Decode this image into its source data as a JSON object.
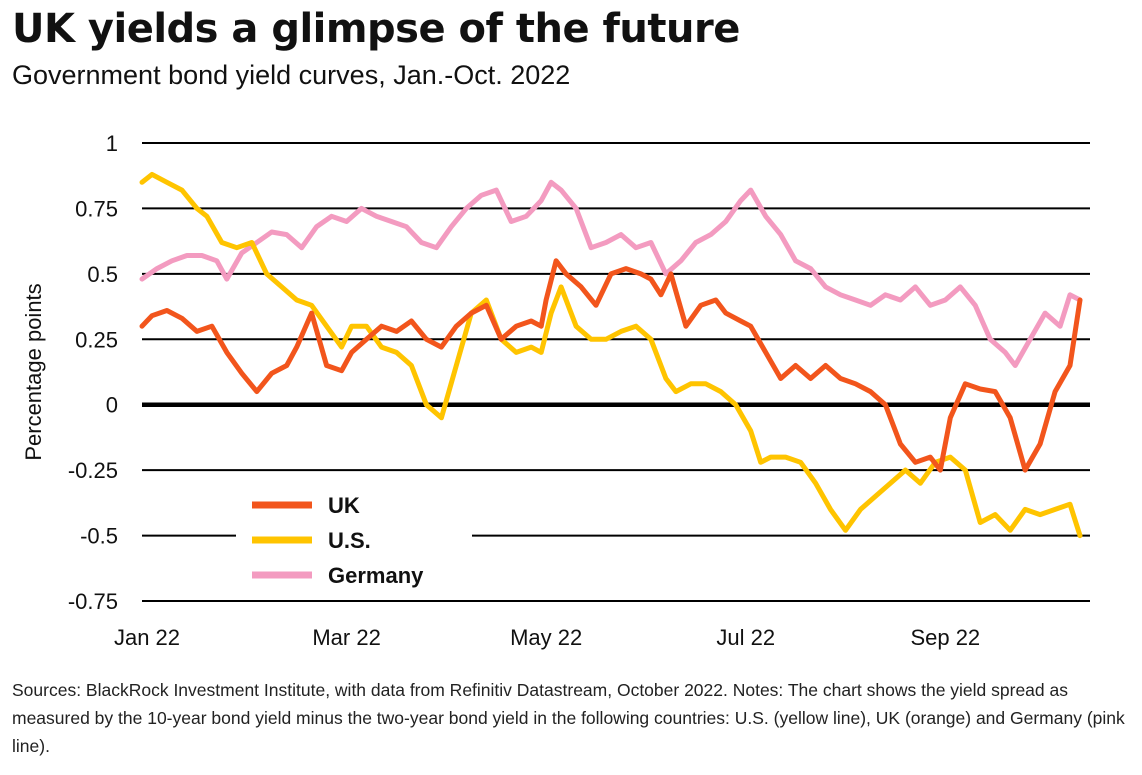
{
  "title": "UK yields a glimpse of the future",
  "subtitle": "Government bond yield curves, Jan.-Oct. 2022",
  "notes": "Sources: BlackRock Investment Institute, with data from Refinitiv Datastream, October 2022. Notes: The chart shows the yield spread as measured by the 10-year bond yield minus the two-year bond yield in the following countries: U.S. (yellow line), UK (orange) and Germany (pink line).",
  "colors": {
    "UK": "#f2551c",
    "U.S.": "#ffc400",
    "Germany": "#f39bc0",
    "gridline": "#000000"
  },
  "chart_data": {
    "type": "line",
    "title": "UK yields a glimpse of the future",
    "subtitle": "Government bond yield curves, Jan.-Oct. 2022",
    "xlabel": "",
    "ylabel": "Percentage points",
    "ylim": [
      -0.75,
      1
    ],
    "yticks": [
      1,
      0.75,
      0.5,
      0.25,
      0,
      -0.25,
      -0.5,
      -0.75
    ],
    "ytick_labels": [
      "1",
      "0.75",
      "0.5",
      "0.25",
      "0",
      "-0.25",
      "-0.5",
      "-0.75"
    ],
    "xlim": [
      0,
      9.5
    ],
    "xticks": [
      0,
      2,
      4,
      6,
      8
    ],
    "xtick_labels": [
      "Jan 22",
      "Mar 22",
      "May 22",
      "Jul 22",
      "Sep 22"
    ],
    "legend": "bottom-left",
    "grid": true,
    "series": [
      {
        "name": "UK",
        "x": [
          0,
          0.1,
          0.25,
          0.4,
          0.55,
          0.7,
          0.85,
          1.0,
          1.15,
          1.3,
          1.45,
          1.55,
          1.7,
          1.85,
          2.0,
          2.1,
          2.25,
          2.4,
          2.55,
          2.7,
          2.85,
          3.0,
          3.15,
          3.3,
          3.45,
          3.6,
          3.75,
          3.9,
          4.0,
          4.05,
          4.15,
          4.25,
          4.4,
          4.55,
          4.7,
          4.85,
          5.0,
          5.1,
          5.2,
          5.3,
          5.45,
          5.6,
          5.75,
          5.85,
          6.0,
          6.1,
          6.25,
          6.4,
          6.55,
          6.7,
          6.85,
          7.0,
          7.15,
          7.3,
          7.45,
          7.6,
          7.75,
          7.9,
          8.0,
          8.1,
          8.25,
          8.4,
          8.55,
          8.7,
          8.85,
          9.0,
          9.15,
          9.3,
          9.4
        ],
        "values": [
          0.3,
          0.34,
          0.36,
          0.33,
          0.28,
          0.3,
          0.2,
          0.12,
          0.05,
          0.12,
          0.15,
          0.22,
          0.35,
          0.15,
          0.13,
          0.2,
          0.25,
          0.3,
          0.28,
          0.32,
          0.25,
          0.22,
          0.3,
          0.35,
          0.38,
          0.25,
          0.3,
          0.32,
          0.3,
          0.4,
          0.55,
          0.5,
          0.45,
          0.38,
          0.5,
          0.52,
          0.5,
          0.48,
          0.42,
          0.5,
          0.3,
          0.38,
          0.4,
          0.35,
          0.32,
          0.3,
          0.2,
          0.1,
          0.15,
          0.1,
          0.15,
          0.1,
          0.08,
          0.05,
          0.0,
          -0.15,
          -0.22,
          -0.2,
          -0.25,
          -0.05,
          0.08,
          0.06,
          0.05,
          -0.05,
          -0.25,
          -0.15,
          0.05,
          0.15,
          0.4
        ]
      },
      {
        "name": "U.S.",
        "x": [
          0,
          0.1,
          0.25,
          0.4,
          0.55,
          0.65,
          0.8,
          0.95,
          1.1,
          1.25,
          1.4,
          1.55,
          1.7,
          1.85,
          2.0,
          2.1,
          2.25,
          2.4,
          2.55,
          2.7,
          2.85,
          3.0,
          3.15,
          3.3,
          3.45,
          3.6,
          3.75,
          3.9,
          4.0,
          4.1,
          4.2,
          4.35,
          4.5,
          4.65,
          4.8,
          4.95,
          5.1,
          5.25,
          5.35,
          5.5,
          5.65,
          5.8,
          5.95,
          6.1,
          6.2,
          6.3,
          6.45,
          6.6,
          6.75,
          6.9,
          7.05,
          7.2,
          7.35,
          7.5,
          7.65,
          7.8,
          7.95,
          8.1,
          8.25,
          8.4,
          8.55,
          8.7,
          8.85,
          9.0,
          9.15,
          9.3,
          9.4
        ],
        "values": [
          0.85,
          0.88,
          0.85,
          0.82,
          0.75,
          0.72,
          0.62,
          0.6,
          0.62,
          0.5,
          0.45,
          0.4,
          0.38,
          0.3,
          0.22,
          0.3,
          0.3,
          0.22,
          0.2,
          0.15,
          0.0,
          -0.05,
          0.15,
          0.35,
          0.4,
          0.25,
          0.2,
          0.22,
          0.2,
          0.35,
          0.45,
          0.3,
          0.25,
          0.25,
          0.28,
          0.3,
          0.25,
          0.1,
          0.05,
          0.08,
          0.08,
          0.05,
          0.0,
          -0.1,
          -0.22,
          -0.2,
          -0.2,
          -0.22,
          -0.3,
          -0.4,
          -0.48,
          -0.4,
          -0.35,
          -0.3,
          -0.25,
          -0.3,
          -0.22,
          -0.2,
          -0.25,
          -0.45,
          -0.42,
          -0.48,
          -0.4,
          -0.42,
          -0.4,
          -0.38,
          -0.5
        ]
      },
      {
        "name": "Germany",
        "x": [
          0,
          0.15,
          0.3,
          0.45,
          0.6,
          0.75,
          0.85,
          1.0,
          1.15,
          1.3,
          1.45,
          1.6,
          1.75,
          1.9,
          2.05,
          2.2,
          2.35,
          2.5,
          2.65,
          2.8,
          2.95,
          3.1,
          3.25,
          3.4,
          3.55,
          3.7,
          3.85,
          4.0,
          4.1,
          4.2,
          4.35,
          4.5,
          4.65,
          4.8,
          4.95,
          5.1,
          5.25,
          5.4,
          5.55,
          5.7,
          5.85,
          6.0,
          6.1,
          6.25,
          6.4,
          6.55,
          6.7,
          6.85,
          7.0,
          7.15,
          7.3,
          7.45,
          7.6,
          7.75,
          7.9,
          8.05,
          8.2,
          8.35,
          8.5,
          8.65,
          8.75,
          8.9,
          9.05,
          9.2,
          9.3,
          9.4
        ],
        "values": [
          0.48,
          0.52,
          0.55,
          0.57,
          0.57,
          0.55,
          0.48,
          0.58,
          0.62,
          0.66,
          0.65,
          0.6,
          0.68,
          0.72,
          0.7,
          0.75,
          0.72,
          0.7,
          0.68,
          0.62,
          0.6,
          0.68,
          0.75,
          0.8,
          0.82,
          0.7,
          0.72,
          0.78,
          0.85,
          0.82,
          0.75,
          0.6,
          0.62,
          0.65,
          0.6,
          0.62,
          0.5,
          0.55,
          0.62,
          0.65,
          0.7,
          0.78,
          0.82,
          0.72,
          0.65,
          0.55,
          0.52,
          0.45,
          0.42,
          0.4,
          0.38,
          0.42,
          0.4,
          0.45,
          0.38,
          0.4,
          0.45,
          0.38,
          0.25,
          0.2,
          0.15,
          0.25,
          0.35,
          0.3,
          0.42,
          0.4
        ]
      }
    ]
  }
}
